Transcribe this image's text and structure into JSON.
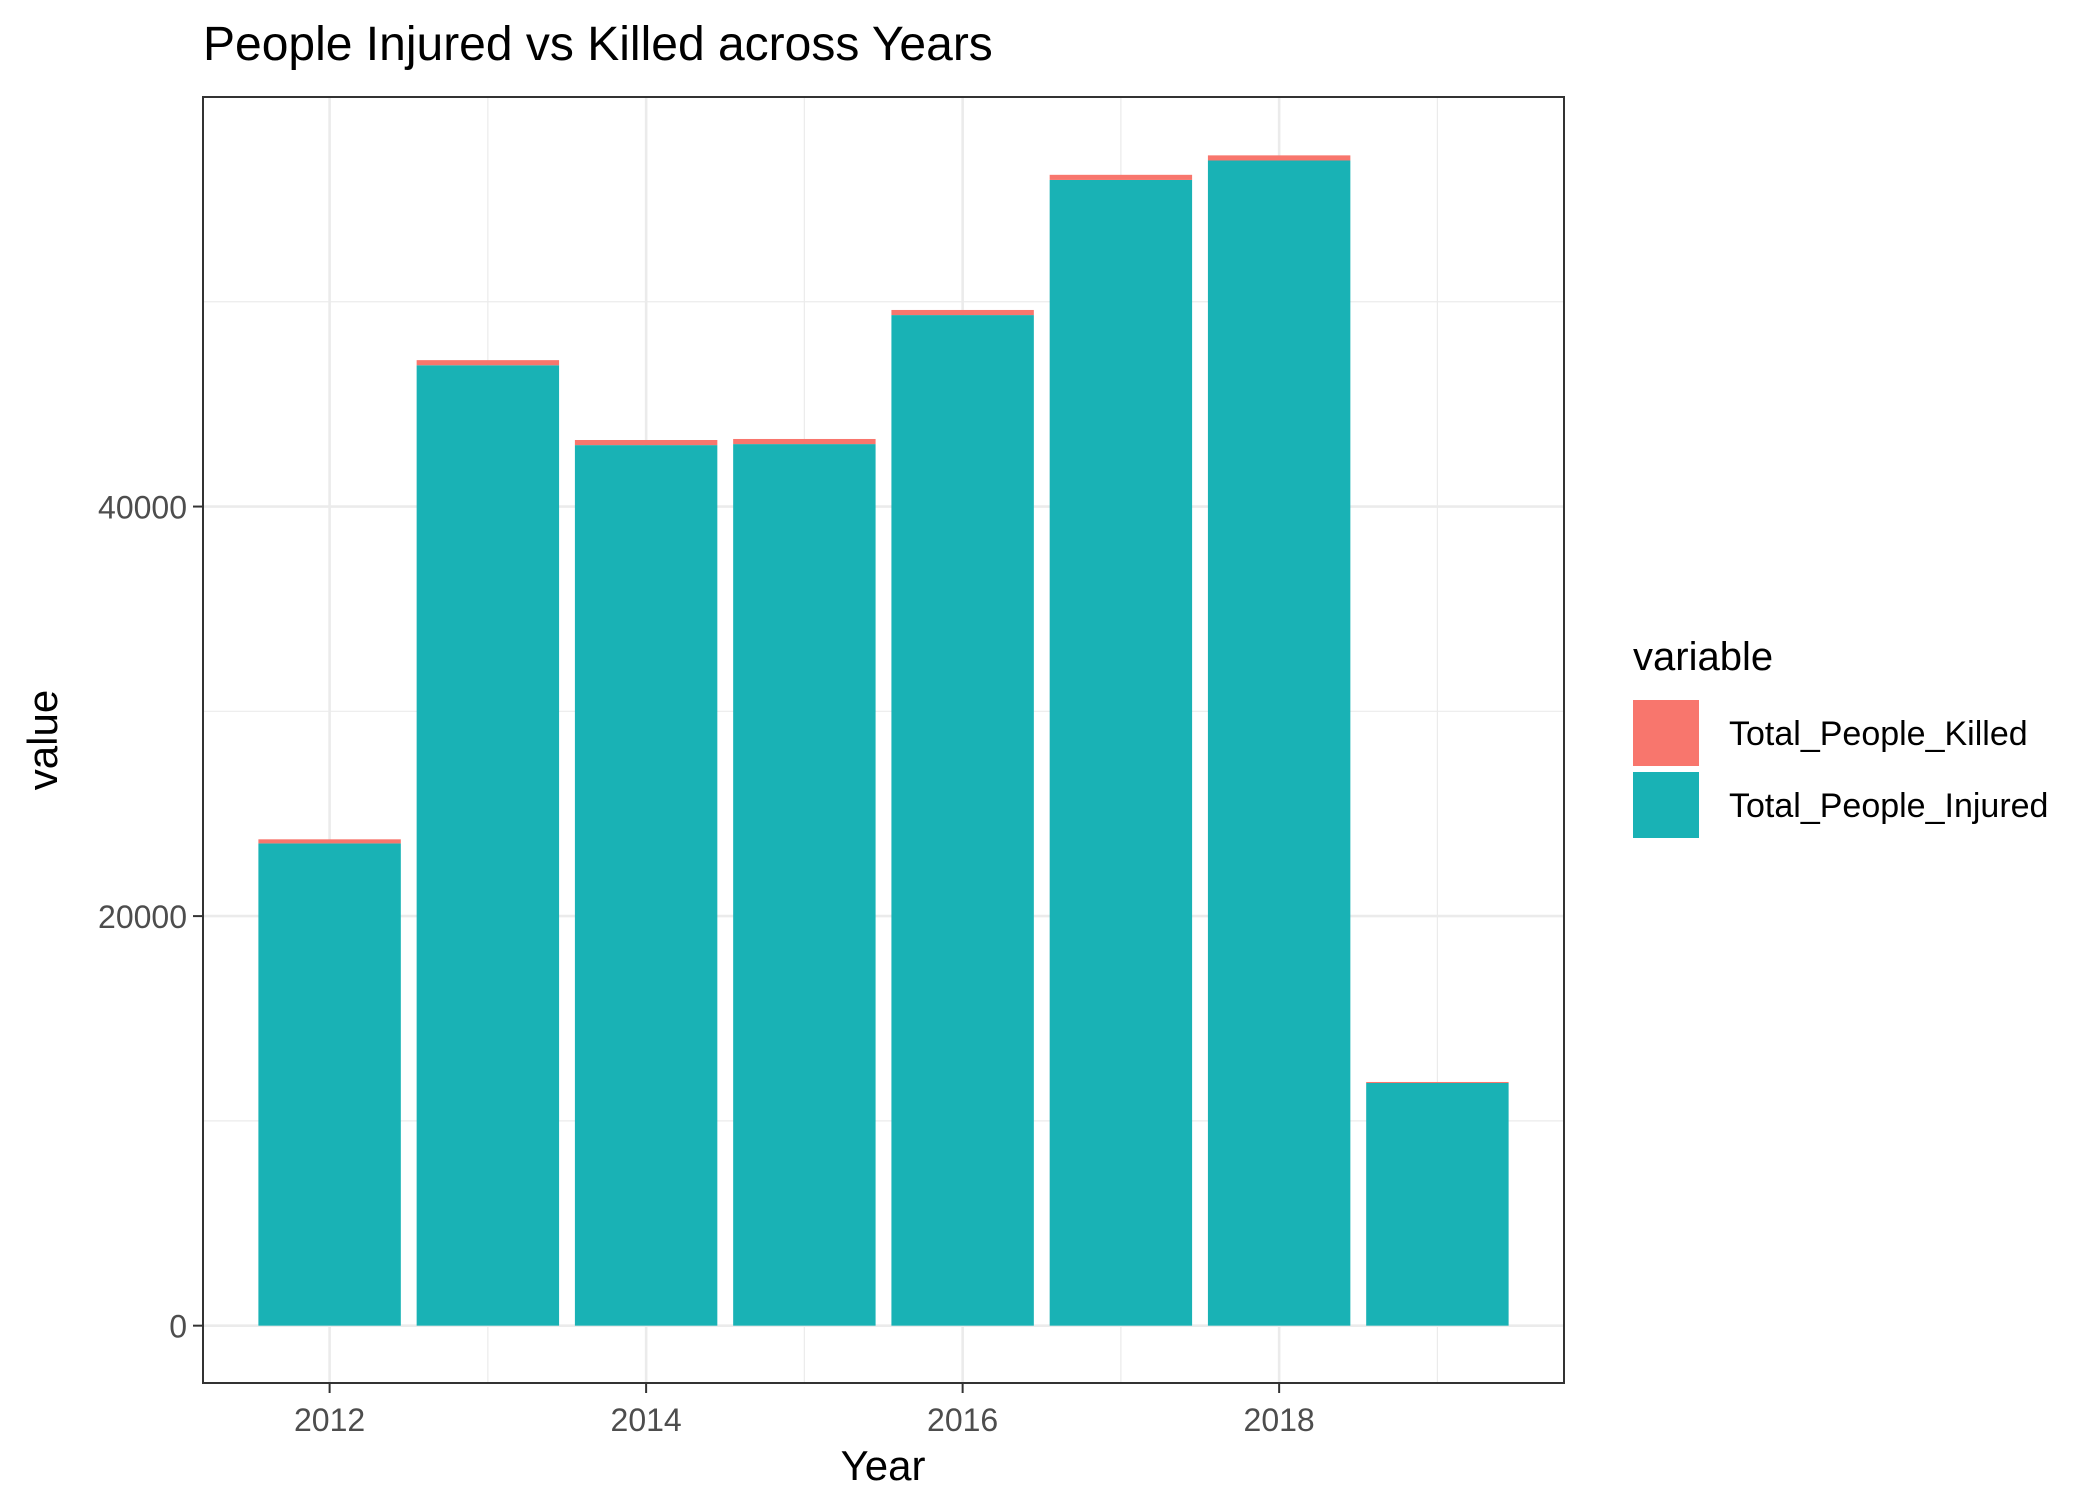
{
  "chart_data": {
    "type": "bar",
    "stacked": true,
    "title": "People Injured vs Killed across Years",
    "xlabel": "Year",
    "ylabel": "value",
    "x": [
      2012,
      2013,
      2014,
      2015,
      2016,
      2017,
      2018,
      2019
    ],
    "x_ticks": [
      2012,
      2014,
      2016,
      2018
    ],
    "x_tick_labels": [
      "2012",
      "2014",
      "2016",
      "2018"
    ],
    "xlim": [
      2011.2,
      2019.8
    ],
    "y_ticks": [
      0,
      20000,
      40000
    ],
    "y_tick_labels": [
      "0",
      "20000",
      "40000"
    ],
    "ylim": [
      -2800,
      60000
    ],
    "grid": true,
    "legend": {
      "title": "variable",
      "position": "right",
      "entries": [
        {
          "name": "Total_People_Killed",
          "color": "#F8766D"
        },
        {
          "name": "Total_People_Injured",
          "color": "#19B2B5"
        }
      ]
    },
    "series": [
      {
        "name": "Total_People_Injured",
        "color": "#19B2B5",
        "values": [
          23550,
          46900,
          43000,
          43050,
          49350,
          55950,
          56900,
          11850
        ]
      },
      {
        "name": "Total_People_Killed",
        "color": "#F8766D",
        "values": [
          200,
          250,
          250,
          250,
          250,
          250,
          250,
          50
        ]
      }
    ]
  }
}
